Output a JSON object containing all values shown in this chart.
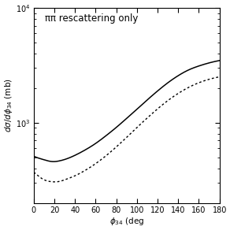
{
  "title": "ππ rescattering only",
  "xlabel": "$\\phi_{34}$ (deg",
  "ylabel": "dσ/dφ$_{34}$ (mb",
  "xlim": [
    0,
    180
  ],
  "ylim_log": [
    200,
    10000
  ],
  "xticks": [
    0,
    20,
    40,
    60,
    80,
    100,
    120,
    140,
    160,
    180
  ],
  "solid_x": [
    0,
    5,
    10,
    15,
    20,
    25,
    30,
    40,
    50,
    60,
    70,
    80,
    90,
    100,
    110,
    120,
    130,
    140,
    150,
    160,
    170,
    180
  ],
  "solid_y": [
    510,
    490,
    475,
    462,
    458,
    465,
    478,
    520,
    580,
    660,
    770,
    910,
    1090,
    1310,
    1580,
    1890,
    2230,
    2570,
    2880,
    3120,
    3320,
    3480
  ],
  "dotted_x": [
    0,
    5,
    10,
    15,
    20,
    25,
    30,
    40,
    50,
    60,
    70,
    80,
    90,
    100,
    110,
    120,
    130,
    140,
    150,
    160,
    170,
    180
  ],
  "dotted_y": [
    370,
    340,
    318,
    308,
    305,
    308,
    318,
    345,
    385,
    440,
    515,
    615,
    745,
    910,
    1100,
    1320,
    1560,
    1800,
    2030,
    2230,
    2390,
    2510
  ],
  "background_color": "#ffffff",
  "line_color": "#000000",
  "title_fontsize": 8.5,
  "axis_fontsize": 7.5,
  "tick_fontsize": 7
}
